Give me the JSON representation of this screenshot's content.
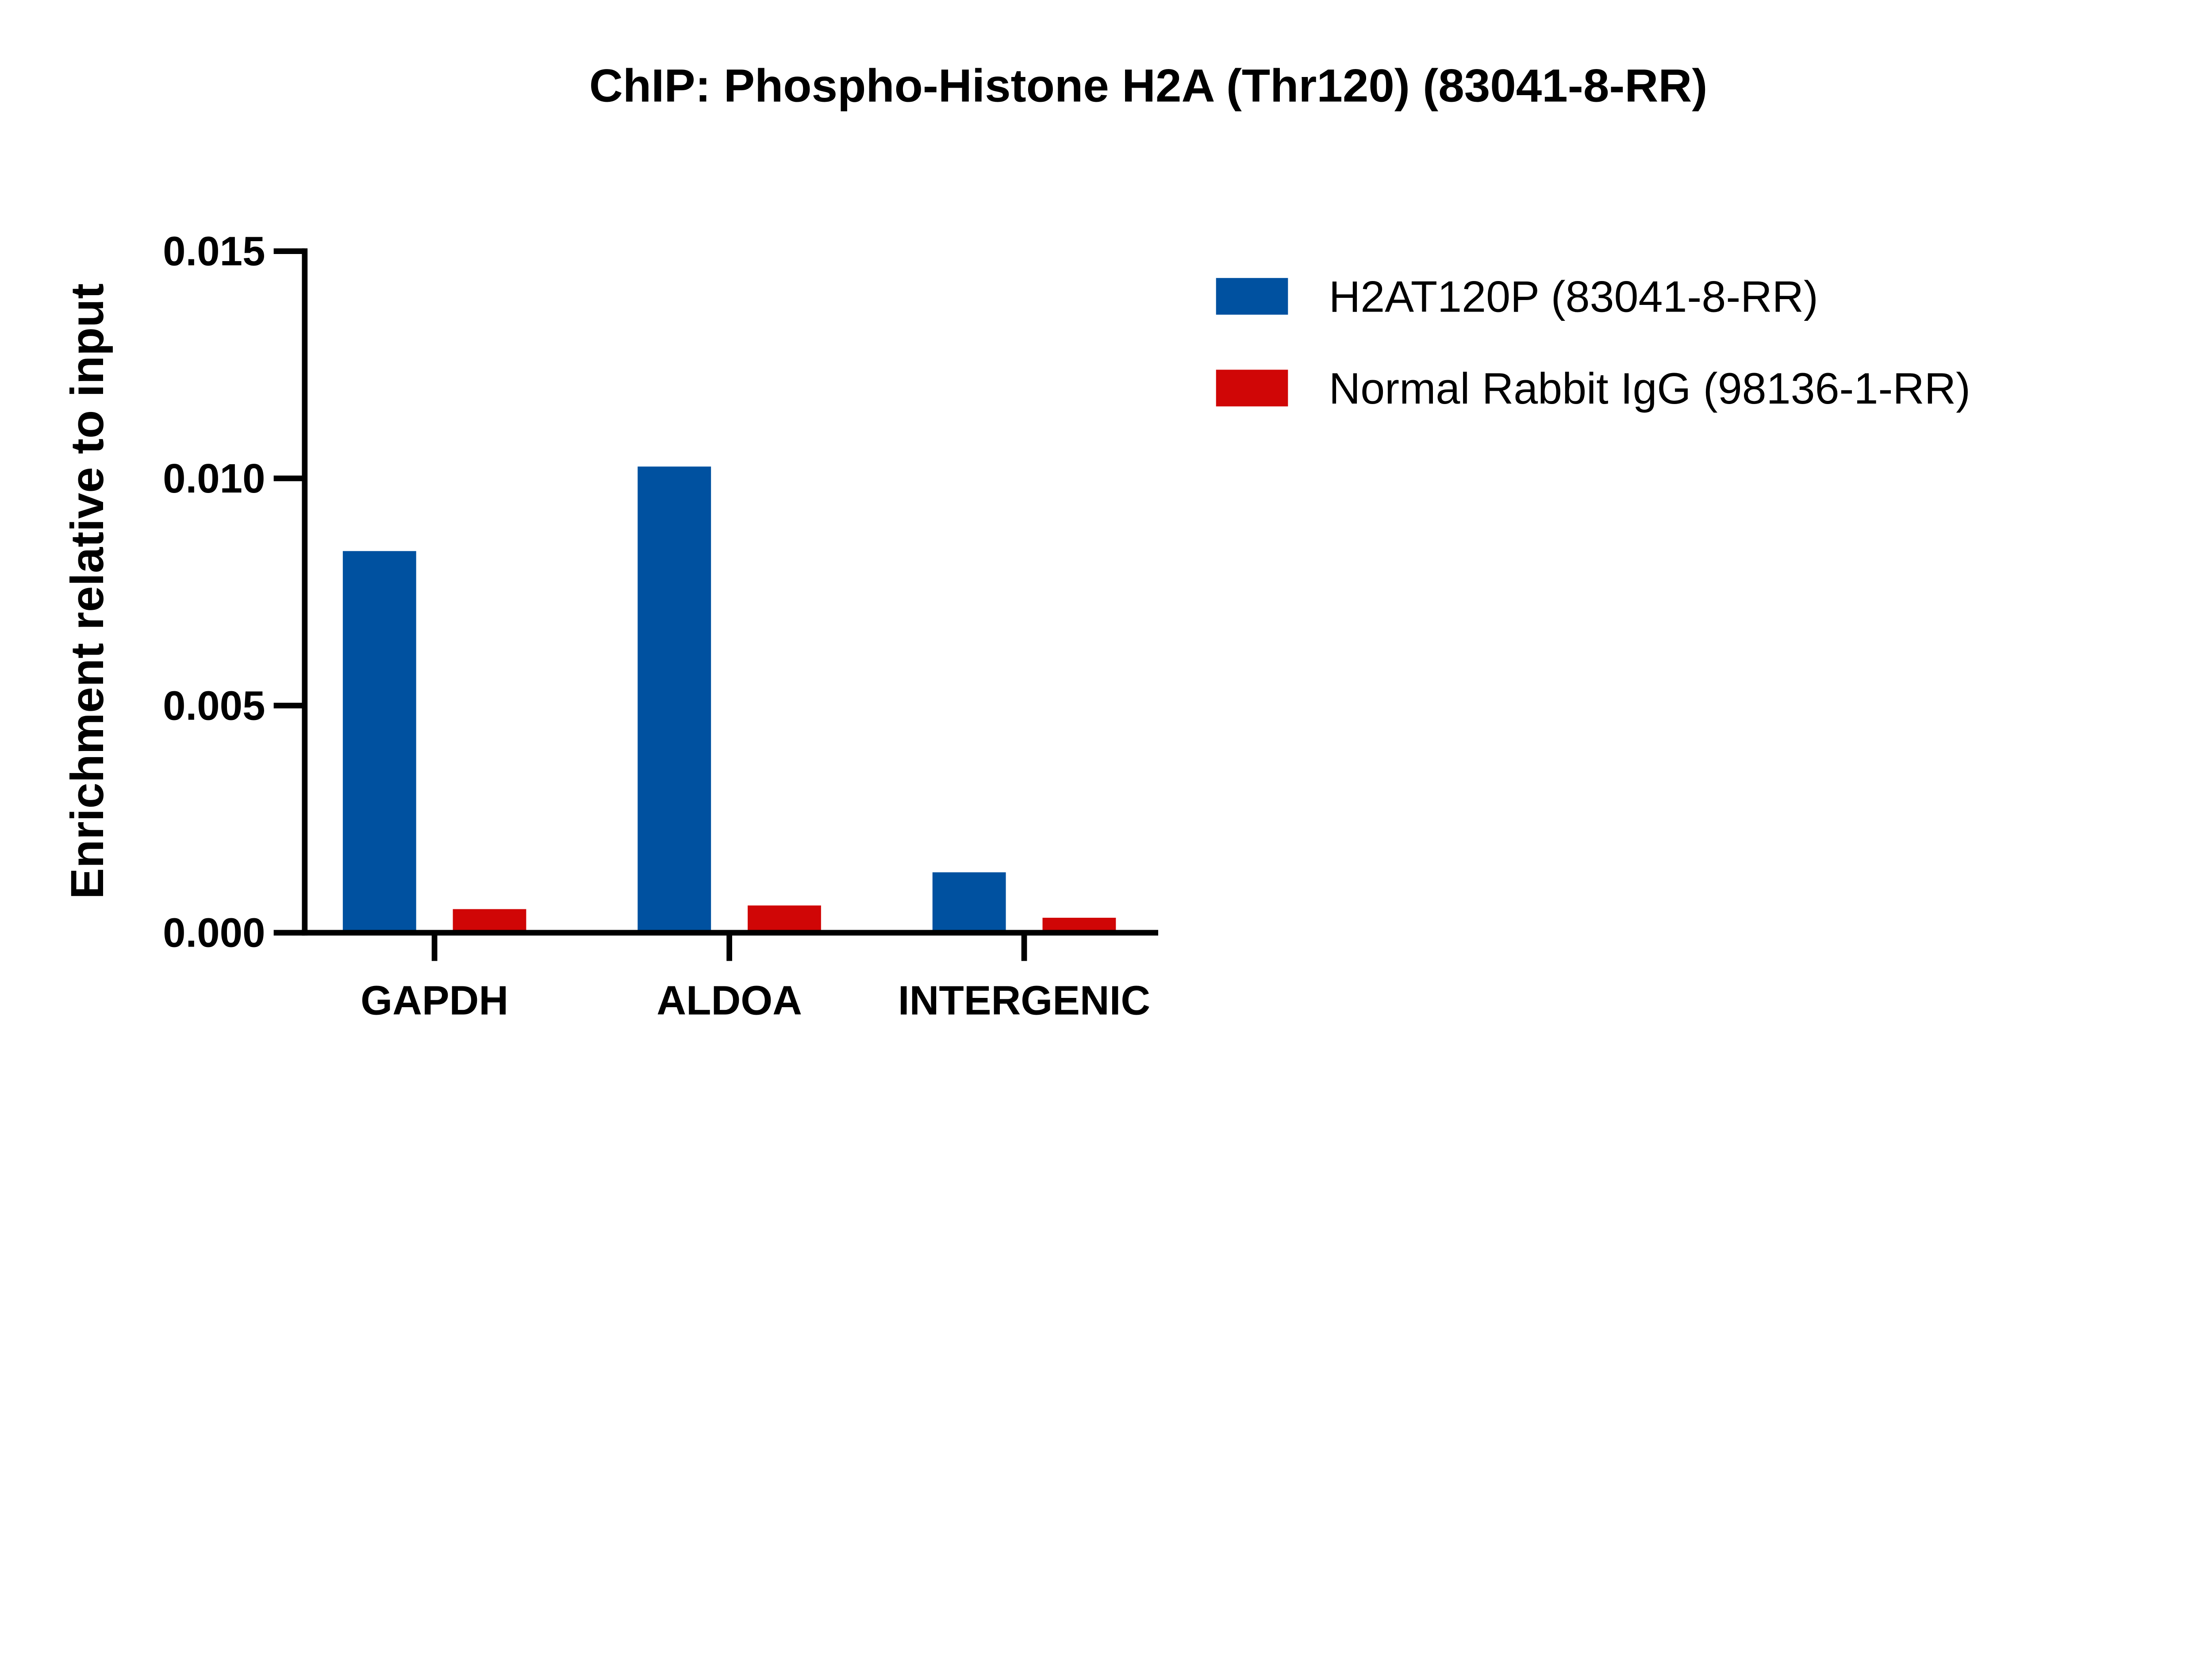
{
  "chart_data": {
    "type": "bar",
    "title": "ChIP: Phospho-Histone H2A (Thr120) (83041-8-RR)",
    "xlabel": "",
    "ylabel": "Enrichment relative to input",
    "categories": [
      "GAPDH",
      "ALDOA",
      "INTERGENIC"
    ],
    "series": [
      {
        "name": "H2AT120P (83041-8-RR)",
        "color": "#0051a0",
        "values": [
          0.0084,
          0.01026,
          0.00133
        ]
      },
      {
        "name": "Normal Rabbit IgG (98136-1-RR)",
        "color": "#d00606",
        "values": [
          0.00052,
          0.0006,
          0.00033
        ]
      }
    ],
    "ylim": [
      0,
      0.015
    ],
    "yticks": [
      "0.000",
      "0.005",
      "0.010",
      "0.015"
    ],
    "grid": false,
    "legend_placement": "right"
  }
}
